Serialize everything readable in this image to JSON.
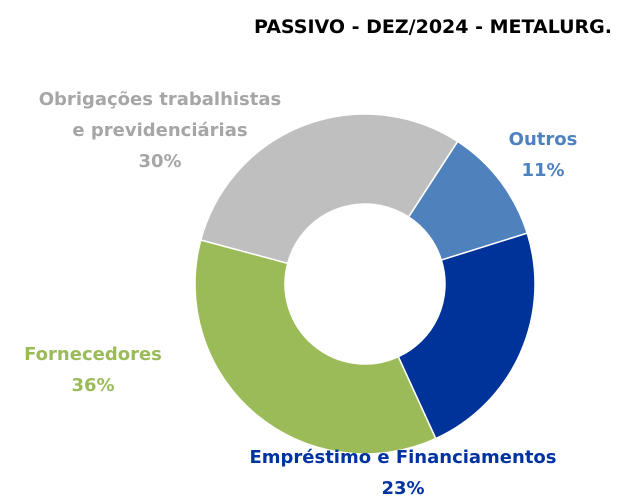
{
  "chart_data": {
    "type": "donut",
    "title": "PASSIVO - DEZ/2024 - METALURG.",
    "categories": [
      "Outros",
      "Empréstimo e Financiamentos",
      "Fornecedores",
      "Obrigações trabalhistas e previdenciárias"
    ],
    "values": [
      11,
      23,
      36,
      30
    ],
    "value_labels": [
      "11%",
      "23%",
      "36%",
      "30%"
    ],
    "colors": [
      "#4f81bd",
      "#003399",
      "#9bbb59",
      "#bfbfbf"
    ],
    "label_colors": [
      "#4f81bd",
      "#0033a0",
      "#9bbb59",
      "#a6a6a6"
    ]
  }
}
